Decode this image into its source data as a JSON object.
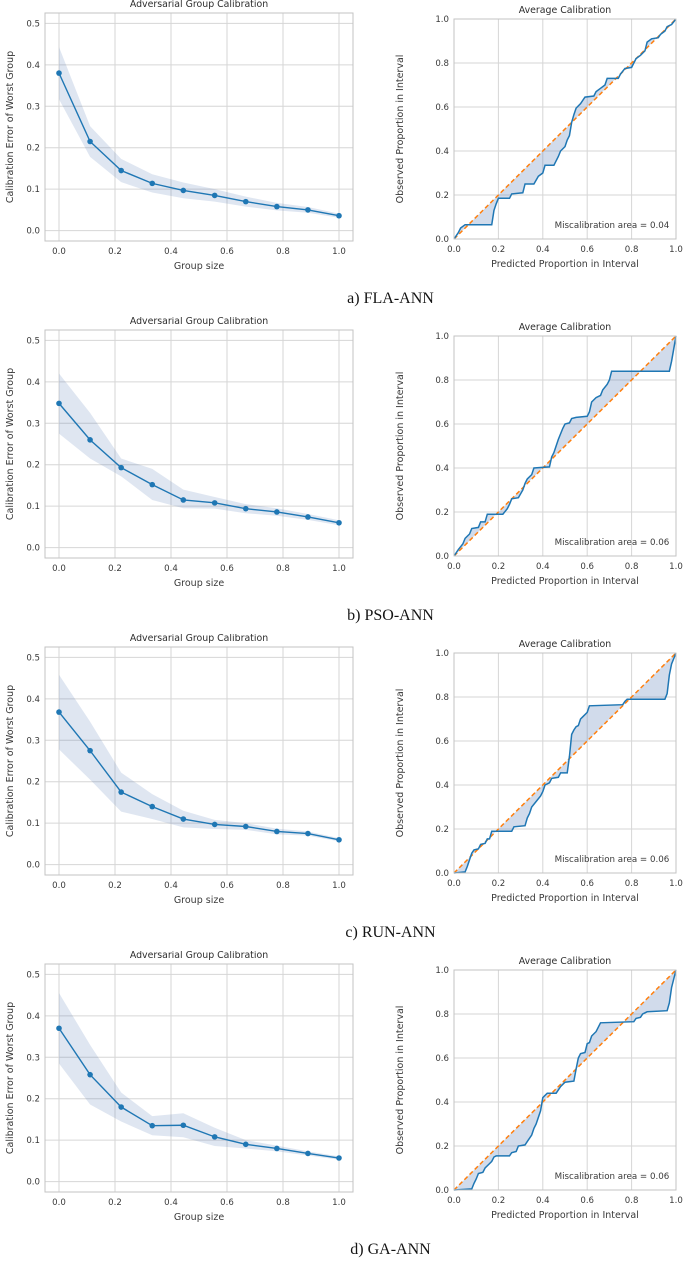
{
  "colors": {
    "background": "#ffffff",
    "line_blue": "#1f77b4",
    "reference_orange": "#ff7f0e",
    "band_fill": "#4c72b0",
    "grid": "#d6d6d6",
    "spine": "#c3c3c3",
    "text": "#3a3a3a",
    "title_text": "#2e2e2e"
  },
  "figure": {
    "left_chart": {
      "title": "Adversarial Group Calibration",
      "xlabel": "Group size",
      "ylabel": "Calibration Error of Worst Group",
      "xtick_labels": [
        "0.0",
        "0.2",
        "0.4",
        "0.6",
        "0.8",
        "1.0"
      ],
      "xtick_values": [
        0,
        0.2,
        0.4,
        0.6,
        0.8,
        1.0
      ],
      "ytick_labels": [
        "0.0",
        "0.1",
        "0.2",
        "0.3",
        "0.4",
        "0.5"
      ],
      "ytick_values": [
        0,
        0.1,
        0.2,
        0.3,
        0.4,
        0.5
      ],
      "xlim": [
        -0.05,
        1.05
      ],
      "ylim": [
        -0.025,
        0.525
      ],
      "grid": true
    },
    "right_chart": {
      "title": "Average Calibration",
      "xlabel": "Predicted Proportion in Interval",
      "ylabel": "Observed Proportion in Interval",
      "xtick_labels": [
        "0.0",
        "0.2",
        "0.4",
        "0.6",
        "0.8",
        "1.0"
      ],
      "xtick_values": [
        0,
        0.2,
        0.4,
        0.6,
        0.8,
        1.0
      ],
      "ytick_labels": [
        "0.0",
        "0.2",
        "0.4",
        "0.6",
        "0.8",
        "1.0"
      ],
      "ytick_values": [
        0,
        0.2,
        0.4,
        0.6,
        0.8,
        1.0
      ],
      "xlim": [
        0,
        1
      ],
      "ylim": [
        0,
        1
      ],
      "grid": true
    }
  },
  "chart_data": [
    {
      "caption": "a) FLA-ANN",
      "adversarial_group_calibration": {
        "type": "line",
        "x": [
          0,
          0.111,
          0.222,
          0.333,
          0.444,
          0.556,
          0.667,
          0.778,
          0.889,
          1.0
        ],
        "y": [
          0.38,
          0.215,
          0.145,
          0.114,
          0.097,
          0.085,
          0.07,
          0.058,
          0.05,
          0.036
        ],
        "band_upper": [
          0.443,
          0.252,
          0.173,
          0.136,
          0.116,
          0.1,
          0.082,
          0.067,
          0.057,
          0.041
        ],
        "band_lower": [
          0.317,
          0.178,
          0.117,
          0.092,
          0.078,
          0.07,
          0.058,
          0.049,
          0.043,
          0.031
        ]
      },
      "average_calibration": {
        "type": "area",
        "annotation": "Miscalibration area = 0.04",
        "miscalibration_area": 0.04,
        "curve": [
          [
            0,
            0
          ],
          [
            0.02,
            0.03
          ],
          [
            0.03,
            0.05
          ],
          [
            0.05,
            0.065
          ],
          [
            0.17,
            0.065
          ],
          [
            0.18,
            0.13
          ],
          [
            0.19,
            0.16
          ],
          [
            0.2,
            0.185
          ],
          [
            0.25,
            0.185
          ],
          [
            0.26,
            0.205
          ],
          [
            0.31,
            0.21
          ],
          [
            0.32,
            0.25
          ],
          [
            0.36,
            0.25
          ],
          [
            0.38,
            0.285
          ],
          [
            0.4,
            0.3
          ],
          [
            0.41,
            0.335
          ],
          [
            0.45,
            0.335
          ],
          [
            0.47,
            0.375
          ],
          [
            0.48,
            0.4
          ],
          [
            0.5,
            0.42
          ],
          [
            0.51,
            0.45
          ],
          [
            0.52,
            0.47
          ],
          [
            0.53,
            0.53
          ],
          [
            0.54,
            0.565
          ],
          [
            0.55,
            0.595
          ],
          [
            0.57,
            0.615
          ],
          [
            0.59,
            0.645
          ],
          [
            0.63,
            0.65
          ],
          [
            0.64,
            0.67
          ],
          [
            0.66,
            0.685
          ],
          [
            0.68,
            0.7
          ],
          [
            0.69,
            0.73
          ],
          [
            0.74,
            0.73
          ],
          [
            0.75,
            0.75
          ],
          [
            0.77,
            0.775
          ],
          [
            0.8,
            0.78
          ],
          [
            0.82,
            0.82
          ],
          [
            0.84,
            0.835
          ],
          [
            0.86,
            0.855
          ],
          [
            0.87,
            0.895
          ],
          [
            0.89,
            0.91
          ],
          [
            0.92,
            0.915
          ],
          [
            0.93,
            0.93
          ],
          [
            0.95,
            0.945
          ],
          [
            0.96,
            0.965
          ],
          [
            0.98,
            0.975
          ],
          [
            1,
            1
          ]
        ]
      }
    },
    {
      "caption": "b) PSO-ANN",
      "adversarial_group_calibration": {
        "type": "line",
        "x": [
          0,
          0.111,
          0.222,
          0.333,
          0.444,
          0.556,
          0.667,
          0.778,
          0.889,
          1.0
        ],
        "y": [
          0.348,
          0.26,
          0.193,
          0.152,
          0.115,
          0.108,
          0.094,
          0.086,
          0.074,
          0.06
        ],
        "band_upper": [
          0.42,
          0.325,
          0.215,
          0.19,
          0.14,
          0.122,
          0.105,
          0.095,
          0.081,
          0.066
        ],
        "band_lower": [
          0.275,
          0.215,
          0.172,
          0.115,
          0.095,
          0.094,
          0.083,
          0.077,
          0.067,
          0.054
        ]
      },
      "average_calibration": {
        "type": "area",
        "annotation": "Miscalibration area = 0.06",
        "miscalibration_area": 0.06,
        "curve": [
          [
            0,
            0
          ],
          [
            0.02,
            0.03
          ],
          [
            0.04,
            0.055
          ],
          [
            0.05,
            0.08
          ],
          [
            0.07,
            0.1
          ],
          [
            0.08,
            0.125
          ],
          [
            0.11,
            0.13
          ],
          [
            0.12,
            0.155
          ],
          [
            0.14,
            0.155
          ],
          [
            0.15,
            0.19
          ],
          [
            0.22,
            0.19
          ],
          [
            0.24,
            0.215
          ],
          [
            0.25,
            0.235
          ],
          [
            0.26,
            0.26
          ],
          [
            0.29,
            0.265
          ],
          [
            0.31,
            0.3
          ],
          [
            0.32,
            0.33
          ],
          [
            0.33,
            0.35
          ],
          [
            0.35,
            0.37
          ],
          [
            0.36,
            0.4
          ],
          [
            0.43,
            0.405
          ],
          [
            0.44,
            0.45
          ],
          [
            0.45,
            0.47
          ],
          [
            0.46,
            0.5
          ],
          [
            0.47,
            0.53
          ],
          [
            0.48,
            0.555
          ],
          [
            0.49,
            0.58
          ],
          [
            0.5,
            0.6
          ],
          [
            0.52,
            0.605
          ],
          [
            0.53,
            0.625
          ],
          [
            0.55,
            0.63
          ],
          [
            0.6,
            0.635
          ],
          [
            0.61,
            0.655
          ],
          [
            0.62,
            0.7
          ],
          [
            0.64,
            0.72
          ],
          [
            0.66,
            0.73
          ],
          [
            0.67,
            0.755
          ],
          [
            0.69,
            0.78
          ],
          [
            0.7,
            0.8
          ],
          [
            0.71,
            0.84
          ],
          [
            0.97,
            0.84
          ],
          [
            0.98,
            0.885
          ],
          [
            1,
            1
          ]
        ]
      }
    },
    {
      "caption": "c) RUN-ANN",
      "adversarial_group_calibration": {
        "type": "line",
        "x": [
          0,
          0.111,
          0.222,
          0.333,
          0.444,
          0.556,
          0.667,
          0.778,
          0.889,
          1.0
        ],
        "y": [
          0.368,
          0.275,
          0.175,
          0.14,
          0.11,
          0.097,
          0.092,
          0.08,
          0.075,
          0.06
        ],
        "band_upper": [
          0.458,
          0.345,
          0.222,
          0.17,
          0.13,
          0.108,
          0.1,
          0.087,
          0.08,
          0.064
        ],
        "band_lower": [
          0.278,
          0.205,
          0.128,
          0.11,
          0.09,
          0.086,
          0.084,
          0.073,
          0.07,
          0.056
        ]
      },
      "average_calibration": {
        "type": "area",
        "annotation": "Miscalibration area = 0.06",
        "miscalibration_area": 0.06,
        "curve": [
          [
            0,
            0
          ],
          [
            0.05,
            0.005
          ],
          [
            0.06,
            0.03
          ],
          [
            0.07,
            0.06
          ],
          [
            0.08,
            0.09
          ],
          [
            0.09,
            0.105
          ],
          [
            0.11,
            0.11
          ],
          [
            0.12,
            0.13
          ],
          [
            0.14,
            0.135
          ],
          [
            0.15,
            0.155
          ],
          [
            0.16,
            0.155
          ],
          [
            0.17,
            0.19
          ],
          [
            0.26,
            0.19
          ],
          [
            0.27,
            0.21
          ],
          [
            0.32,
            0.215
          ],
          [
            0.33,
            0.25
          ],
          [
            0.34,
            0.27
          ],
          [
            0.35,
            0.3
          ],
          [
            0.37,
            0.325
          ],
          [
            0.39,
            0.35
          ],
          [
            0.4,
            0.37
          ],
          [
            0.41,
            0.4
          ],
          [
            0.43,
            0.41
          ],
          [
            0.44,
            0.43
          ],
          [
            0.47,
            0.435
          ],
          [
            0.48,
            0.455
          ],
          [
            0.51,
            0.455
          ],
          [
            0.52,
            0.53
          ],
          [
            0.53,
            0.63
          ],
          [
            0.54,
            0.65
          ],
          [
            0.55,
            0.665
          ],
          [
            0.56,
            0.67
          ],
          [
            0.57,
            0.7
          ],
          [
            0.58,
            0.71
          ],
          [
            0.6,
            0.73
          ],
          [
            0.61,
            0.76
          ],
          [
            0.76,
            0.765
          ],
          [
            0.77,
            0.78
          ],
          [
            0.78,
            0.79
          ],
          [
            0.95,
            0.79
          ],
          [
            0.96,
            0.815
          ],
          [
            0.97,
            0.9
          ],
          [
            0.98,
            0.95
          ],
          [
            1,
            1
          ]
        ]
      }
    },
    {
      "caption": "d) GA-ANN",
      "adversarial_group_calibration": {
        "type": "line",
        "x": [
          0,
          0.111,
          0.222,
          0.333,
          0.444,
          0.556,
          0.667,
          0.778,
          0.889,
          1.0
        ],
        "y": [
          0.37,
          0.258,
          0.18,
          0.135,
          0.136,
          0.108,
          0.09,
          0.08,
          0.068,
          0.057
        ],
        "band_upper": [
          0.455,
          0.33,
          0.215,
          0.158,
          0.165,
          0.13,
          0.1,
          0.087,
          0.073,
          0.061
        ],
        "band_lower": [
          0.285,
          0.186,
          0.145,
          0.112,
          0.107,
          0.086,
          0.08,
          0.073,
          0.063,
          0.053
        ]
      },
      "average_calibration": {
        "type": "area",
        "annotation": "Miscalibration area = 0.06",
        "miscalibration_area": 0.06,
        "curve": [
          [
            0,
            0
          ],
          [
            0.08,
            0.005
          ],
          [
            0.09,
            0.03
          ],
          [
            0.1,
            0.05
          ],
          [
            0.11,
            0.075
          ],
          [
            0.13,
            0.08
          ],
          [
            0.14,
            0.1
          ],
          [
            0.16,
            0.12
          ],
          [
            0.17,
            0.13
          ],
          [
            0.18,
            0.15
          ],
          [
            0.19,
            0.155
          ],
          [
            0.25,
            0.155
          ],
          [
            0.26,
            0.17
          ],
          [
            0.28,
            0.175
          ],
          [
            0.29,
            0.2
          ],
          [
            0.32,
            0.205
          ],
          [
            0.33,
            0.22
          ],
          [
            0.35,
            0.25
          ],
          [
            0.36,
            0.28
          ],
          [
            0.37,
            0.3
          ],
          [
            0.38,
            0.33
          ],
          [
            0.39,
            0.36
          ],
          [
            0.4,
            0.42
          ],
          [
            0.42,
            0.44
          ],
          [
            0.46,
            0.44
          ],
          [
            0.47,
            0.455
          ],
          [
            0.48,
            0.47
          ],
          [
            0.5,
            0.49
          ],
          [
            0.54,
            0.495
          ],
          [
            0.55,
            0.55
          ],
          [
            0.56,
            0.6
          ],
          [
            0.57,
            0.62
          ],
          [
            0.59,
            0.625
          ],
          [
            0.6,
            0.665
          ],
          [
            0.61,
            0.67
          ],
          [
            0.62,
            0.7
          ],
          [
            0.64,
            0.72
          ],
          [
            0.65,
            0.74
          ],
          [
            0.66,
            0.76
          ],
          [
            0.81,
            0.765
          ],
          [
            0.82,
            0.78
          ],
          [
            0.84,
            0.785
          ],
          [
            0.85,
            0.8
          ],
          [
            0.87,
            0.81
          ],
          [
            0.96,
            0.815
          ],
          [
            0.97,
            0.85
          ],
          [
            0.98,
            0.92
          ],
          [
            1,
            1
          ]
        ]
      }
    }
  ]
}
